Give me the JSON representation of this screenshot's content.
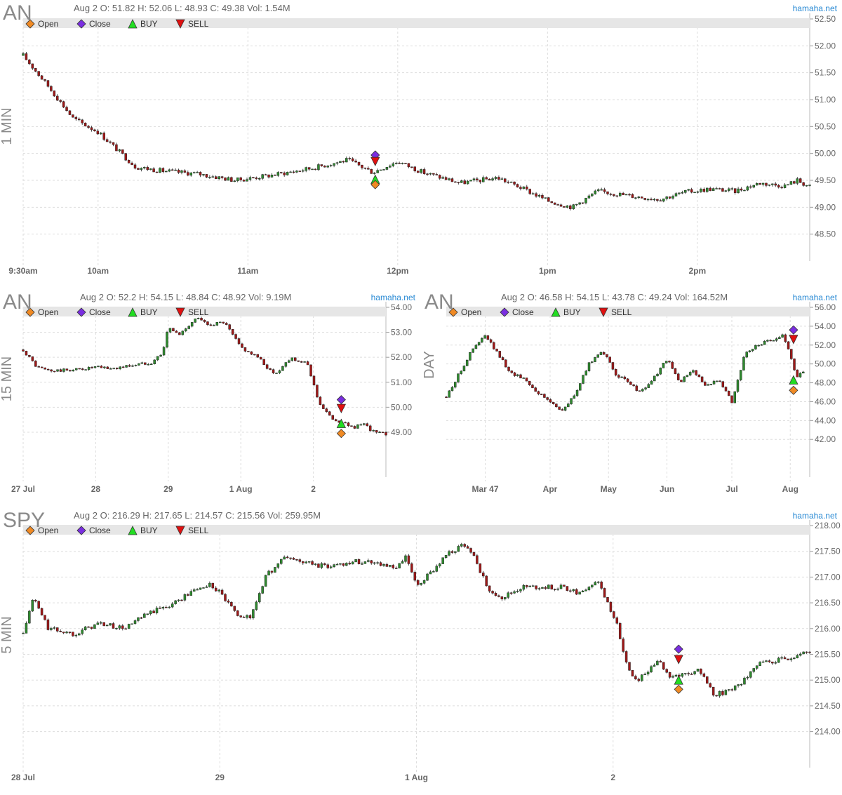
{
  "brand": "hamaha.net",
  "legend": {
    "open": "Open",
    "close": "Close",
    "buy": "BUY",
    "sell": "SELL"
  },
  "colors": {
    "up": "#2e8b2e",
    "down": "#a01818",
    "open_marker": "#f08a24",
    "close_marker": "#7a2ee0",
    "buy_marker": "#22dd22",
    "sell_marker": "#e01010",
    "brand": "#2a8ad4",
    "legend_bar": "#e6e6e6"
  },
  "chart_data": [
    {
      "id": "an_1min",
      "type": "candlestick",
      "symbol": "AN",
      "timeframe": "1 MIN",
      "info": {
        "date": "Aug 2",
        "ohlc": "O: 51.82 H: 52.06 L: 48.93 C: 49.38",
        "volume": "Vol: 1.54M"
      },
      "ylim": [
        48.0,
        52.5
      ],
      "yticks": [
        48.5,
        49.0,
        49.5,
        50.0,
        50.5,
        51.0,
        51.5,
        52.0,
        52.5
      ],
      "ytick_labels": [
        "48.50",
        "49.00",
        "49.50",
        "50.00",
        "50.50",
        "51.00",
        "51.50",
        "52.00",
        "52.50"
      ],
      "xlim": [
        0,
        315
      ],
      "xticks": [
        0,
        30,
        90,
        150,
        210,
        270
      ],
      "xtick_labels": [
        "9:30am",
        "10am",
        "11am",
        "12pm",
        "1pm",
        "2pm"
      ],
      "series": {
        "x": [
          0,
          10,
          20,
          30,
          45,
          55,
          70,
          85,
          100,
          115,
          130,
          140,
          150,
          160,
          175,
          190,
          200,
          210,
          220,
          230,
          245,
          255,
          265,
          275,
          285,
          295,
          300,
          305,
          310,
          315
        ],
        "close": [
          51.82,
          51.25,
          50.65,
          50.4,
          49.75,
          49.68,
          49.62,
          49.5,
          49.6,
          49.72,
          49.88,
          49.65,
          49.85,
          49.65,
          49.45,
          49.55,
          49.35,
          49.12,
          49.0,
          49.3,
          49.2,
          49.15,
          49.28,
          49.34,
          49.3,
          49.45,
          49.42,
          49.4,
          49.5,
          49.38
        ]
      },
      "markers": [
        {
          "type": "close",
          "x": 141,
          "y": 49.97
        },
        {
          "type": "sell",
          "x": 141,
          "y": 49.85
        },
        {
          "type": "buy",
          "x": 141,
          "y": 49.52
        },
        {
          "type": "open",
          "x": 141,
          "y": 49.42
        }
      ]
    },
    {
      "id": "an_15min",
      "type": "candlestick",
      "symbol": "AN",
      "timeframe": "15 MIN",
      "info": {
        "date": "Aug 2",
        "ohlc": "O: 52.2 H: 54.15 L: 48.84 C: 48.92",
        "volume": "Vol: 9.19M"
      },
      "ylim": [
        47.2,
        54.0
      ],
      "yticks": [
        49.0,
        50.0,
        51.0,
        52.0,
        53.0,
        54.0
      ],
      "ytick_labels": [
        "49.00",
        "50.00",
        "51.00",
        "52.00",
        "53.00",
        "54.00"
      ],
      "xlim": [
        0,
        130
      ],
      "xticks": [
        0,
        26,
        52,
        78,
        104
      ],
      "xtick_labels": [
        "27 Jul",
        "28",
        "29",
        "1 Aug",
        "2"
      ],
      "series": {
        "x": [
          0,
          5,
          10,
          18,
          26,
          32,
          40,
          46,
          50,
          52,
          56,
          62,
          66,
          72,
          78,
          84,
          90,
          96,
          102,
          106,
          110,
          114,
          118,
          122,
          126,
          130
        ],
        "close": [
          52.3,
          51.6,
          51.45,
          51.5,
          51.6,
          51.55,
          51.7,
          51.8,
          52.2,
          53.2,
          52.9,
          53.6,
          53.3,
          53.4,
          52.4,
          52.0,
          51.3,
          52.0,
          51.7,
          50.2,
          49.6,
          49.4,
          49.2,
          49.3,
          49.0,
          48.92
        ]
      },
      "markers": [
        {
          "type": "close",
          "x": 114,
          "y": 50.3
        },
        {
          "type": "sell",
          "x": 114,
          "y": 49.95
        },
        {
          "type": "buy",
          "x": 114,
          "y": 49.35
        },
        {
          "type": "open",
          "x": 114,
          "y": 48.95
        }
      ]
    },
    {
      "id": "an_day",
      "type": "candlestick",
      "symbol": "AN",
      "timeframe": "DAY",
      "info": {
        "date": "Aug 2",
        "ohlc": "O: 46.58 H: 54.15 L: 43.78 C: 49.24",
        "volume": "Vol: 164.52M"
      },
      "ylim": [
        38.0,
        56.0
      ],
      "yticks": [
        42.0,
        44.0,
        46.0,
        48.0,
        50.0,
        52.0,
        54.0,
        56.0
      ],
      "ytick_labels": [
        "42.00",
        "44.00",
        "46.00",
        "48.00",
        "50.00",
        "52.00",
        "54.00",
        "56.00"
      ],
      "xlim": [
        0,
        112
      ],
      "xticks": [
        12,
        32,
        50,
        68,
        88,
        106
      ],
      "xtick_labels": [
        "Mar 47",
        "Apr",
        "May",
        "Jun",
        "Jul",
        "Aug"
      ],
      "series": {
        "x": [
          0,
          4,
          8,
          12,
          16,
          20,
          24,
          28,
          32,
          36,
          40,
          44,
          48,
          52,
          56,
          60,
          64,
          68,
          72,
          76,
          80,
          84,
          88,
          92,
          96,
          100,
          104,
          106,
          108,
          110
        ],
        "close": [
          46.5,
          49.0,
          51.5,
          53.0,
          51.0,
          49.0,
          48.5,
          47.0,
          46.0,
          45.0,
          47.0,
          50.0,
          51.5,
          49.0,
          48.0,
          47.0,
          48.5,
          50.5,
          48.0,
          49.5,
          47.5,
          48.5,
          46.0,
          51.0,
          52.0,
          52.5,
          53.0,
          51.0,
          48.5,
          49.24
        ]
      },
      "markers": [
        {
          "type": "close",
          "x": 107,
          "y": 53.6
        },
        {
          "type": "sell",
          "x": 107,
          "y": 52.6
        },
        {
          "type": "buy",
          "x": 107,
          "y": 48.3
        },
        {
          "type": "open",
          "x": 107,
          "y": 47.2
        }
      ]
    },
    {
      "id": "spy_5min",
      "type": "candlestick",
      "symbol": "SPY",
      "timeframe": "5 MIN",
      "info": {
        "date": "Aug 2",
        "ohlc": "O: 216.29 H: 217.65 L: 214.57 C: 215.56",
        "volume": "Vol: 259.95M"
      },
      "ylim": [
        213.3,
        218.0
      ],
      "yticks": [
        214.0,
        214.5,
        215.0,
        215.5,
        216.0,
        216.5,
        217.0,
        217.5,
        218.0
      ],
      "ytick_labels": [
        "214.00",
        "214.50",
        "215.00",
        "215.50",
        "216.00",
        "216.50",
        "217.00",
        "217.50",
        "218.00"
      ],
      "xlim": [
        0,
        312
      ],
      "xticks": [
        0,
        78,
        156,
        234
      ],
      "xtick_labels": [
        "28 Jul",
        "29",
        "1 Aug",
        "2"
      ],
      "series": {
        "x": [
          0,
          4,
          10,
          20,
          30,
          40,
          50,
          60,
          68,
          74,
          78,
          84,
          90,
          96,
          104,
          110,
          120,
          130,
          140,
          148,
          152,
          156,
          162,
          168,
          174,
          178,
          184,
          190,
          198,
          206,
          214,
          220,
          228,
          232,
          236,
          240,
          244,
          248,
          252,
          256,
          262,
          268,
          274,
          280,
          286,
          292,
          300,
          306,
          312
        ],
        "close": [
          215.9,
          216.6,
          216.0,
          215.9,
          216.1,
          216.0,
          216.3,
          216.5,
          216.75,
          216.85,
          216.7,
          216.3,
          216.2,
          217.0,
          217.4,
          217.3,
          217.2,
          217.3,
          217.3,
          217.15,
          217.4,
          216.8,
          217.1,
          217.45,
          217.6,
          217.5,
          216.8,
          216.6,
          216.8,
          216.8,
          216.8,
          216.7,
          216.9,
          216.5,
          216.0,
          215.2,
          215.0,
          215.2,
          215.4,
          215.1,
          215.1,
          215.2,
          214.7,
          214.8,
          215.0,
          215.3,
          215.4,
          215.45,
          215.56
        ]
      },
      "markers": [
        {
          "type": "close",
          "x": 260,
          "y": 215.6
        },
        {
          "type": "sell",
          "x": 260,
          "y": 215.4
        },
        {
          "type": "buy",
          "x": 260,
          "y": 215.0
        },
        {
          "type": "open",
          "x": 260,
          "y": 214.82
        }
      ]
    }
  ]
}
